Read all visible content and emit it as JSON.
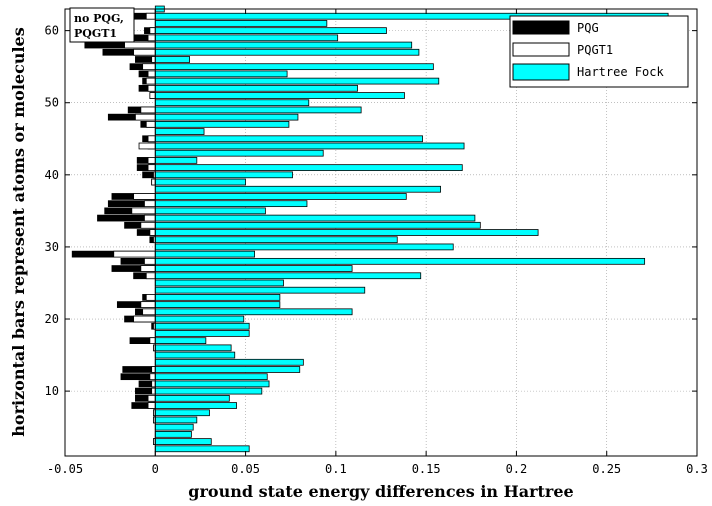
{
  "chart_data": {
    "type": "bar",
    "orientation": "horizontal",
    "xlabel": "ground state energy differences in Hartree",
    "ylabel": "horizontal bars represent atoms or molecules",
    "xlim": [
      -0.05,
      0.3
    ],
    "ylim": [
      1,
      63
    ],
    "xticks": [
      "-0.05",
      "0",
      "0.05",
      "0.1",
      "0.15",
      "0.2",
      "0.25",
      "0.3"
    ],
    "yticks": [
      "10",
      "20",
      "30",
      "40",
      "50",
      "60"
    ],
    "grid": true,
    "legend_position": "top-right",
    "annotation": "no PQG,\nPQGT1",
    "categories": [
      2,
      3,
      4,
      5,
      6,
      7,
      8,
      9,
      10,
      11,
      12,
      13,
      14,
      15,
      16,
      17,
      18,
      19,
      20,
      21,
      22,
      23,
      24,
      25,
      26,
      27,
      28,
      29,
      30,
      31,
      32,
      33,
      34,
      35,
      36,
      37,
      38,
      39,
      40,
      41,
      42,
      43,
      44,
      45,
      46,
      47,
      48,
      49,
      50,
      51,
      52,
      53,
      54,
      55,
      56,
      57,
      58,
      59,
      60,
      61,
      62,
      63
    ],
    "series": [
      {
        "name": "PQG",
        "color": "#000000",
        "values": [
          0,
          -0.001,
          0,
          0,
          -0.001,
          -0.001,
          -0.013,
          -0.011,
          -0.011,
          -0.009,
          -0.019,
          -0.018,
          0,
          0,
          -0.001,
          -0.014,
          0,
          -0.002,
          -0.017,
          -0.011,
          -0.021,
          -0.007,
          0,
          0,
          -0.012,
          -0.024,
          -0.019,
          -0.046,
          0,
          -0.003,
          -0.01,
          -0.017,
          -0.032,
          -0.028,
          -0.026,
          -0.024,
          0,
          -0.002,
          -0.007,
          -0.01,
          -0.01,
          0,
          -0.004,
          -0.007,
          0,
          -0.008,
          -0.026,
          -0.015,
          0,
          -0.003,
          -0.009,
          -0.007,
          -0.009,
          -0.014,
          -0.011,
          -0.029,
          -0.039,
          -0.019,
          -0.006,
          0,
          -0.013,
          0
        ]
      },
      {
        "name": "PQGT1",
        "color": "#ffffff",
        "values": [
          0,
          -0.001,
          0,
          0,
          -0.001,
          -0.001,
          -0.004,
          -0.004,
          -0.002,
          -0.002,
          -0.003,
          -0.002,
          0,
          0,
          -0.001,
          -0.003,
          0,
          -0.001,
          -0.012,
          -0.007,
          -0.008,
          -0.005,
          0,
          0,
          -0.005,
          -0.008,
          -0.006,
          -0.023,
          0,
          -0.001,
          -0.003,
          -0.008,
          -0.006,
          -0.013,
          -0.006,
          -0.012,
          0,
          -0.002,
          -0.001,
          -0.004,
          -0.004,
          0,
          -0.009,
          -0.004,
          0,
          -0.005,
          -0.011,
          -0.008,
          0,
          -0.003,
          -0.004,
          -0.005,
          -0.004,
          -0.007,
          -0.002,
          -0.012,
          -0.017,
          -0.004,
          -0.003,
          0,
          -0.005,
          0
        ]
      },
      {
        "name": "Hartree Fock",
        "color": "#00ffff",
        "values": [
          0.052,
          0.031,
          0.02,
          0.021,
          0.023,
          0.03,
          0.045,
          0.041,
          0.059,
          0.063,
          0.062,
          0.08,
          0.082,
          0.044,
          0.042,
          0.028,
          0.052,
          0.052,
          0.049,
          0.109,
          0.069,
          0.069,
          0.116,
          0.071,
          0.147,
          0.109,
          0.271,
          0.055,
          0.165,
          0.134,
          0.212,
          0.18,
          0.177,
          0.061,
          0.084,
          0.139,
          0.158,
          0.05,
          0.076,
          0.17,
          0.023,
          0.093,
          0.171,
          0.148,
          0.027,
          0.074,
          0.079,
          0.114,
          0.085,
          0.138,
          0.112,
          0.157,
          0.073,
          0.154,
          0.019,
          0.146,
          0.142,
          0.101,
          0.128,
          0.095,
          0.284,
          0.005
        ]
      }
    ]
  }
}
